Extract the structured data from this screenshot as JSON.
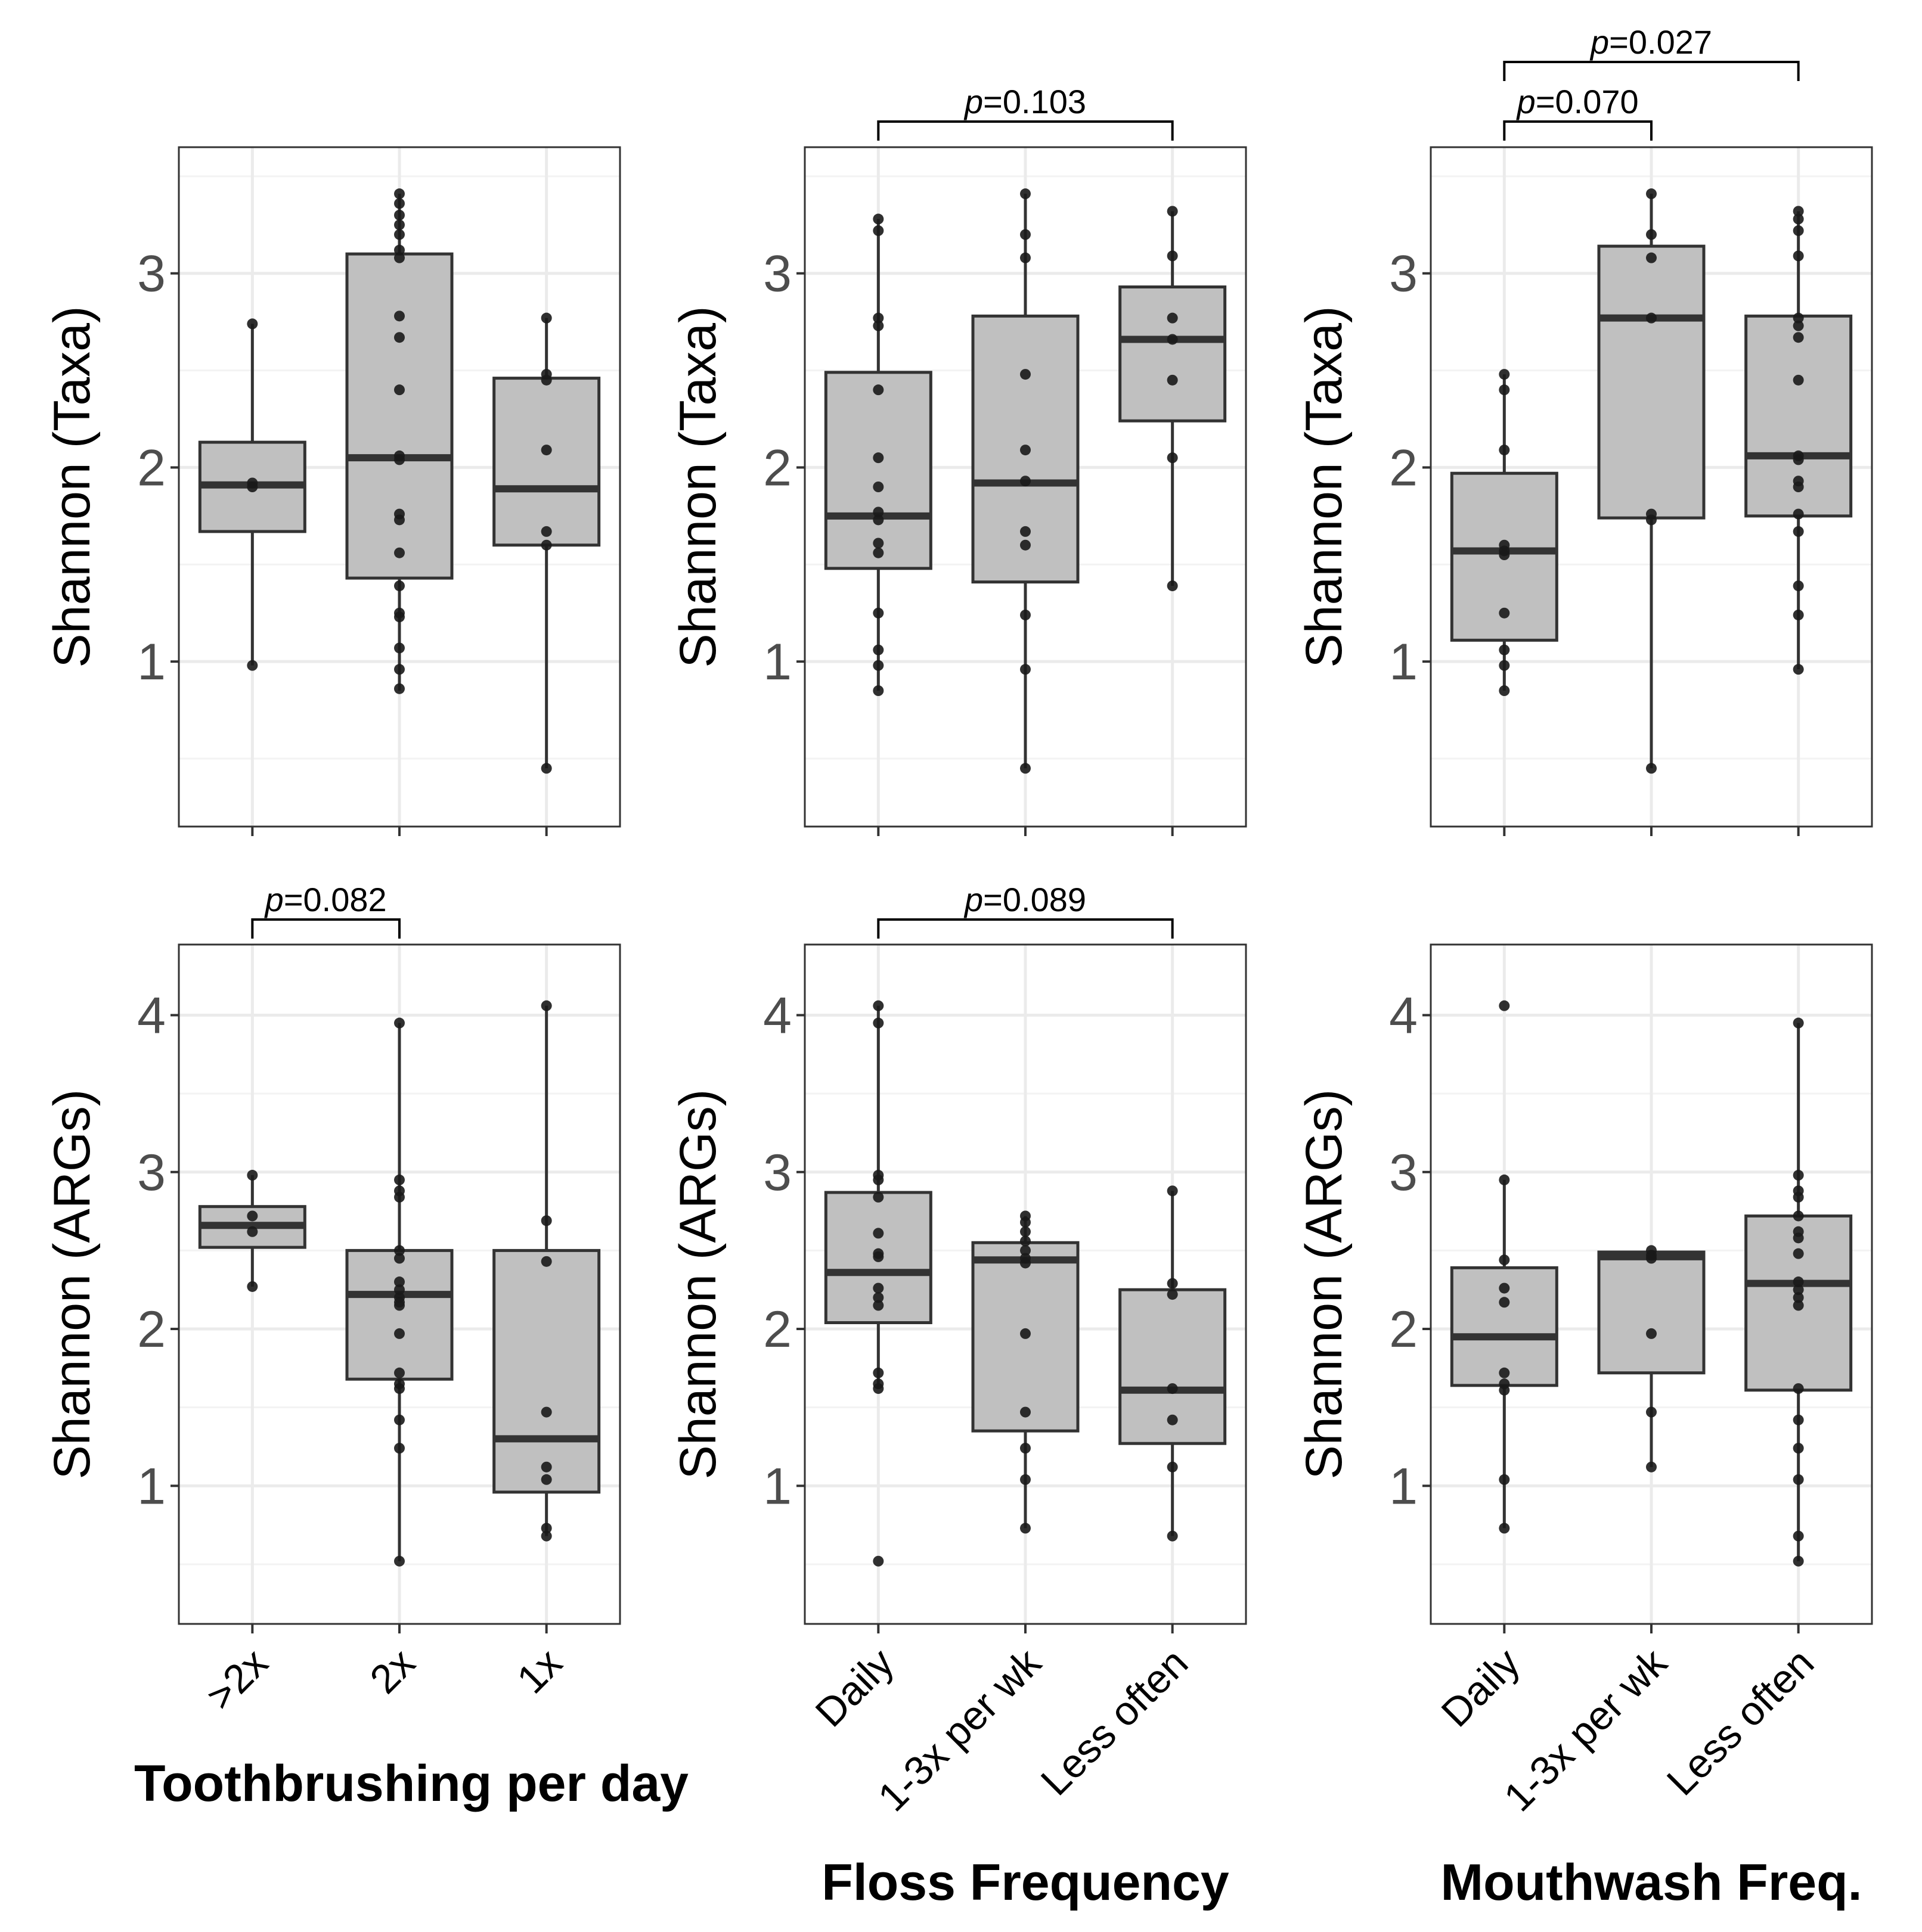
{
  "colors": {
    "box_fill": "#c0c0c0",
    "box_stroke": "#333333",
    "point": "#1a1a1a",
    "panel_border": "#333333",
    "grid_major": "#ebebeb",
    "grid_minor": "#f3f3f3",
    "tick_text": "#4d4d4d"
  },
  "chart_data": [
    {
      "id": "tooth_taxa",
      "type": "box",
      "ylabel": "Shannon (Taxa)",
      "xlabel": "",
      "categories": [
        ">2x",
        "2x",
        "1x"
      ],
      "ylim": [
        0.15,
        3.65
      ],
      "yticks": [
        1,
        2,
        3
      ],
      "grid": true,
      "boxes": [
        {
          "category": ">2x",
          "q1": 1.67,
          "median": 1.91,
          "q3": 2.13,
          "whisker_low": 0.98,
          "whisker_high": 2.74,
          "points": [
            2.74,
            1.92,
            1.9,
            0.98
          ]
        },
        {
          "category": "2x",
          "q1": 1.43,
          "median": 2.05,
          "q3": 3.1,
          "whisker_low": 0.85,
          "whisker_high": 3.41,
          "points": [
            3.41,
            3.36,
            3.3,
            3.25,
            3.2,
            3.12,
            3.08,
            2.78,
            2.67,
            2.4,
            2.06,
            2.04,
            1.76,
            1.73,
            1.56,
            1.39,
            1.25,
            1.23,
            1.07,
            0.96,
            0.86
          ]
        },
        {
          "category": "1x",
          "q1": 1.6,
          "median": 1.89,
          "q3": 2.46,
          "whisker_low": 0.45,
          "whisker_high": 2.77,
          "points": [
            2.77,
            2.48,
            2.45,
            2.09,
            1.67,
            1.6,
            0.45
          ]
        }
      ],
      "annotations": []
    },
    {
      "id": "floss_taxa",
      "type": "box",
      "ylabel": "Shannon (Taxa)",
      "xlabel": "",
      "categories": [
        "Daily",
        "1-3x per wk",
        "Less often"
      ],
      "ylim": [
        0.15,
        3.65
      ],
      "yticks": [
        1,
        2,
        3
      ],
      "grid": true,
      "boxes": [
        {
          "category": "Daily",
          "q1": 1.48,
          "median": 1.75,
          "q3": 2.49,
          "whisker_low": 0.85,
          "whisker_high": 3.28,
          "points": [
            3.28,
            3.22,
            2.77,
            2.73,
            2.4,
            2.05,
            1.9,
            1.77,
            1.73,
            1.61,
            1.56,
            1.25,
            1.06,
            0.98,
            0.85
          ]
        },
        {
          "category": "1-3x per wk",
          "q1": 1.41,
          "median": 1.92,
          "q3": 2.78,
          "whisker_low": 0.45,
          "whisker_high": 3.41,
          "points": [
            3.41,
            3.2,
            3.08,
            2.48,
            2.09,
            1.93,
            1.67,
            1.6,
            1.24,
            0.96,
            0.45
          ]
        },
        {
          "category": "Less often",
          "q1": 2.24,
          "median": 2.66,
          "q3": 2.93,
          "whisker_low": 1.39,
          "whisker_high": 3.32,
          "points": [
            3.32,
            3.09,
            2.77,
            2.66,
            2.45,
            2.05,
            1.39
          ]
        }
      ],
      "annotations": [
        {
          "from": 0,
          "to": 2,
          "level": 1,
          "label": "p=0.103"
        }
      ]
    },
    {
      "id": "mouthwash_taxa",
      "type": "box",
      "ylabel": "Shannon (Taxa)",
      "xlabel": "",
      "categories": [
        "Daily",
        "1-3x per wk",
        "Less often"
      ],
      "ylim": [
        0.15,
        3.65
      ],
      "yticks": [
        1,
        2,
        3
      ],
      "grid": true,
      "boxes": [
        {
          "category": "Daily",
          "q1": 1.11,
          "median": 1.57,
          "q3": 1.97,
          "whisker_low": 0.85,
          "whisker_high": 2.48,
          "points": [
            2.48,
            2.4,
            2.09,
            1.6,
            1.57,
            1.55,
            1.25,
            1.06,
            0.98,
            0.85
          ]
        },
        {
          "category": "1-3x per wk",
          "q1": 1.74,
          "median": 2.77,
          "q3": 3.14,
          "whisker_low": 0.45,
          "whisker_high": 3.41,
          "points": [
            3.41,
            3.2,
            3.08,
            2.77,
            1.76,
            1.73,
            0.45
          ]
        },
        {
          "category": "Less often",
          "q1": 1.75,
          "median": 2.06,
          "q3": 2.78,
          "whisker_low": 0.96,
          "whisker_high": 3.32,
          "points": [
            3.32,
            3.28,
            3.22,
            3.09,
            2.77,
            2.73,
            2.67,
            2.45,
            2.06,
            2.04,
            1.93,
            1.9,
            1.76,
            1.67,
            1.39,
            1.24,
            0.96
          ]
        }
      ],
      "annotations": [
        {
          "from": 0,
          "to": 2,
          "level": 2,
          "label": "p=0.027"
        },
        {
          "from": 0,
          "to": 1,
          "level": 1,
          "label": "p=0.070"
        }
      ]
    },
    {
      "id": "tooth_args",
      "type": "box",
      "ylabel": "Shannon (ARGs)",
      "xlabel": "Toothbrushing per day",
      "categories": [
        ">2x",
        "2x",
        "1x"
      ],
      "ylim": [
        0.12,
        4.45
      ],
      "yticks": [
        1,
        2,
        3,
        4
      ],
      "grid": true,
      "boxes": [
        {
          "category": ">2x",
          "q1": 2.52,
          "median": 2.66,
          "q3": 2.78,
          "whisker_low": 2.27,
          "whisker_high": 2.98,
          "points": [
            2.98,
            2.72,
            2.62,
            2.27
          ]
        },
        {
          "category": "2x",
          "q1": 1.68,
          "median": 2.22,
          "q3": 2.5,
          "whisker_low": 0.52,
          "whisker_high": 3.95,
          "points": [
            3.95,
            2.95,
            2.88,
            2.84,
            2.5,
            2.45,
            2.3,
            2.25,
            2.2,
            2.17,
            2.15,
            1.97,
            1.72,
            1.65,
            1.62,
            1.42,
            1.24,
            0.52
          ]
        },
        {
          "category": "1x",
          "q1": 0.96,
          "median": 1.3,
          "q3": 2.5,
          "whisker_low": 0.68,
          "whisker_high": 4.06,
          "points": [
            4.06,
            2.69,
            2.43,
            1.47,
            1.12,
            1.04,
            0.73,
            0.68
          ]
        }
      ],
      "annotations": [
        {
          "from": 0,
          "to": 1,
          "level": 1,
          "label": "p=0.082"
        }
      ]
    },
    {
      "id": "floss_args",
      "type": "box",
      "ylabel": "Shannon (ARGs)",
      "xlabel": "Floss Frequency",
      "categories": [
        "Daily",
        "1-3x per wk",
        "Less often"
      ],
      "ylim": [
        0.12,
        4.45
      ],
      "yticks": [
        1,
        2,
        3,
        4
      ],
      "grid": true,
      "boxes": [
        {
          "category": "Daily",
          "q1": 2.04,
          "median": 2.36,
          "q3": 2.87,
          "whisker_low": 1.62,
          "whisker_high": 4.06,
          "points": [
            4.06,
            3.95,
            2.98,
            2.95,
            2.84,
            2.61,
            2.48,
            2.46,
            2.26,
            2.2,
            2.15,
            1.72,
            1.65,
            1.62,
            0.52
          ]
        },
        {
          "category": "1-3x per wk",
          "q1": 1.35,
          "median": 2.44,
          "q3": 2.55,
          "whisker_low": 0.73,
          "whisker_high": 2.72,
          "points": [
            2.72,
            2.68,
            2.62,
            2.56,
            2.5,
            2.45,
            2.42,
            1.97,
            1.47,
            1.24,
            1.04,
            0.73
          ]
        },
        {
          "category": "Less often",
          "q1": 1.27,
          "median": 1.61,
          "q3": 2.25,
          "whisker_low": 0.68,
          "whisker_high": 2.88,
          "points": [
            2.88,
            2.29,
            2.22,
            1.62,
            1.42,
            1.12,
            0.68
          ]
        }
      ],
      "annotations": [
        {
          "from": 0,
          "to": 2,
          "level": 1,
          "label": "p=0.089"
        }
      ]
    },
    {
      "id": "mouthwash_args",
      "type": "box",
      "ylabel": "Shannon (ARGs)",
      "xlabel": "Mouthwash Freq.",
      "categories": [
        "Daily",
        "1-3x per wk",
        "Less often"
      ],
      "ylim": [
        0.12,
        4.45
      ],
      "yticks": [
        1,
        2,
        3,
        4
      ],
      "grid": true,
      "boxes": [
        {
          "category": "Daily",
          "q1": 1.64,
          "median": 1.95,
          "q3": 2.39,
          "whisker_low": 0.73,
          "whisker_high": 2.95,
          "points": [
            4.06,
            2.95,
            2.44,
            2.26,
            2.17,
            1.72,
            1.65,
            1.61,
            1.04,
            0.73
          ]
        },
        {
          "category": "1-3x per wk",
          "q1": 1.72,
          "median": 2.46,
          "q3": 2.49,
          "whisker_low": 1.12,
          "whisker_high": 2.5,
          "points": [
            2.5,
            2.47,
            2.45,
            1.97,
            1.47,
            1.12
          ]
        },
        {
          "category": "Less often",
          "q1": 1.61,
          "median": 2.29,
          "q3": 2.72,
          "whisker_low": 0.52,
          "whisker_high": 3.95,
          "points": [
            3.95,
            2.98,
            2.88,
            2.84,
            2.72,
            2.62,
            2.58,
            2.48,
            2.3,
            2.25,
            2.2,
            2.15,
            1.62,
            1.42,
            1.24,
            1.04,
            0.68,
            0.52
          ]
        }
      ],
      "annotations": []
    }
  ]
}
